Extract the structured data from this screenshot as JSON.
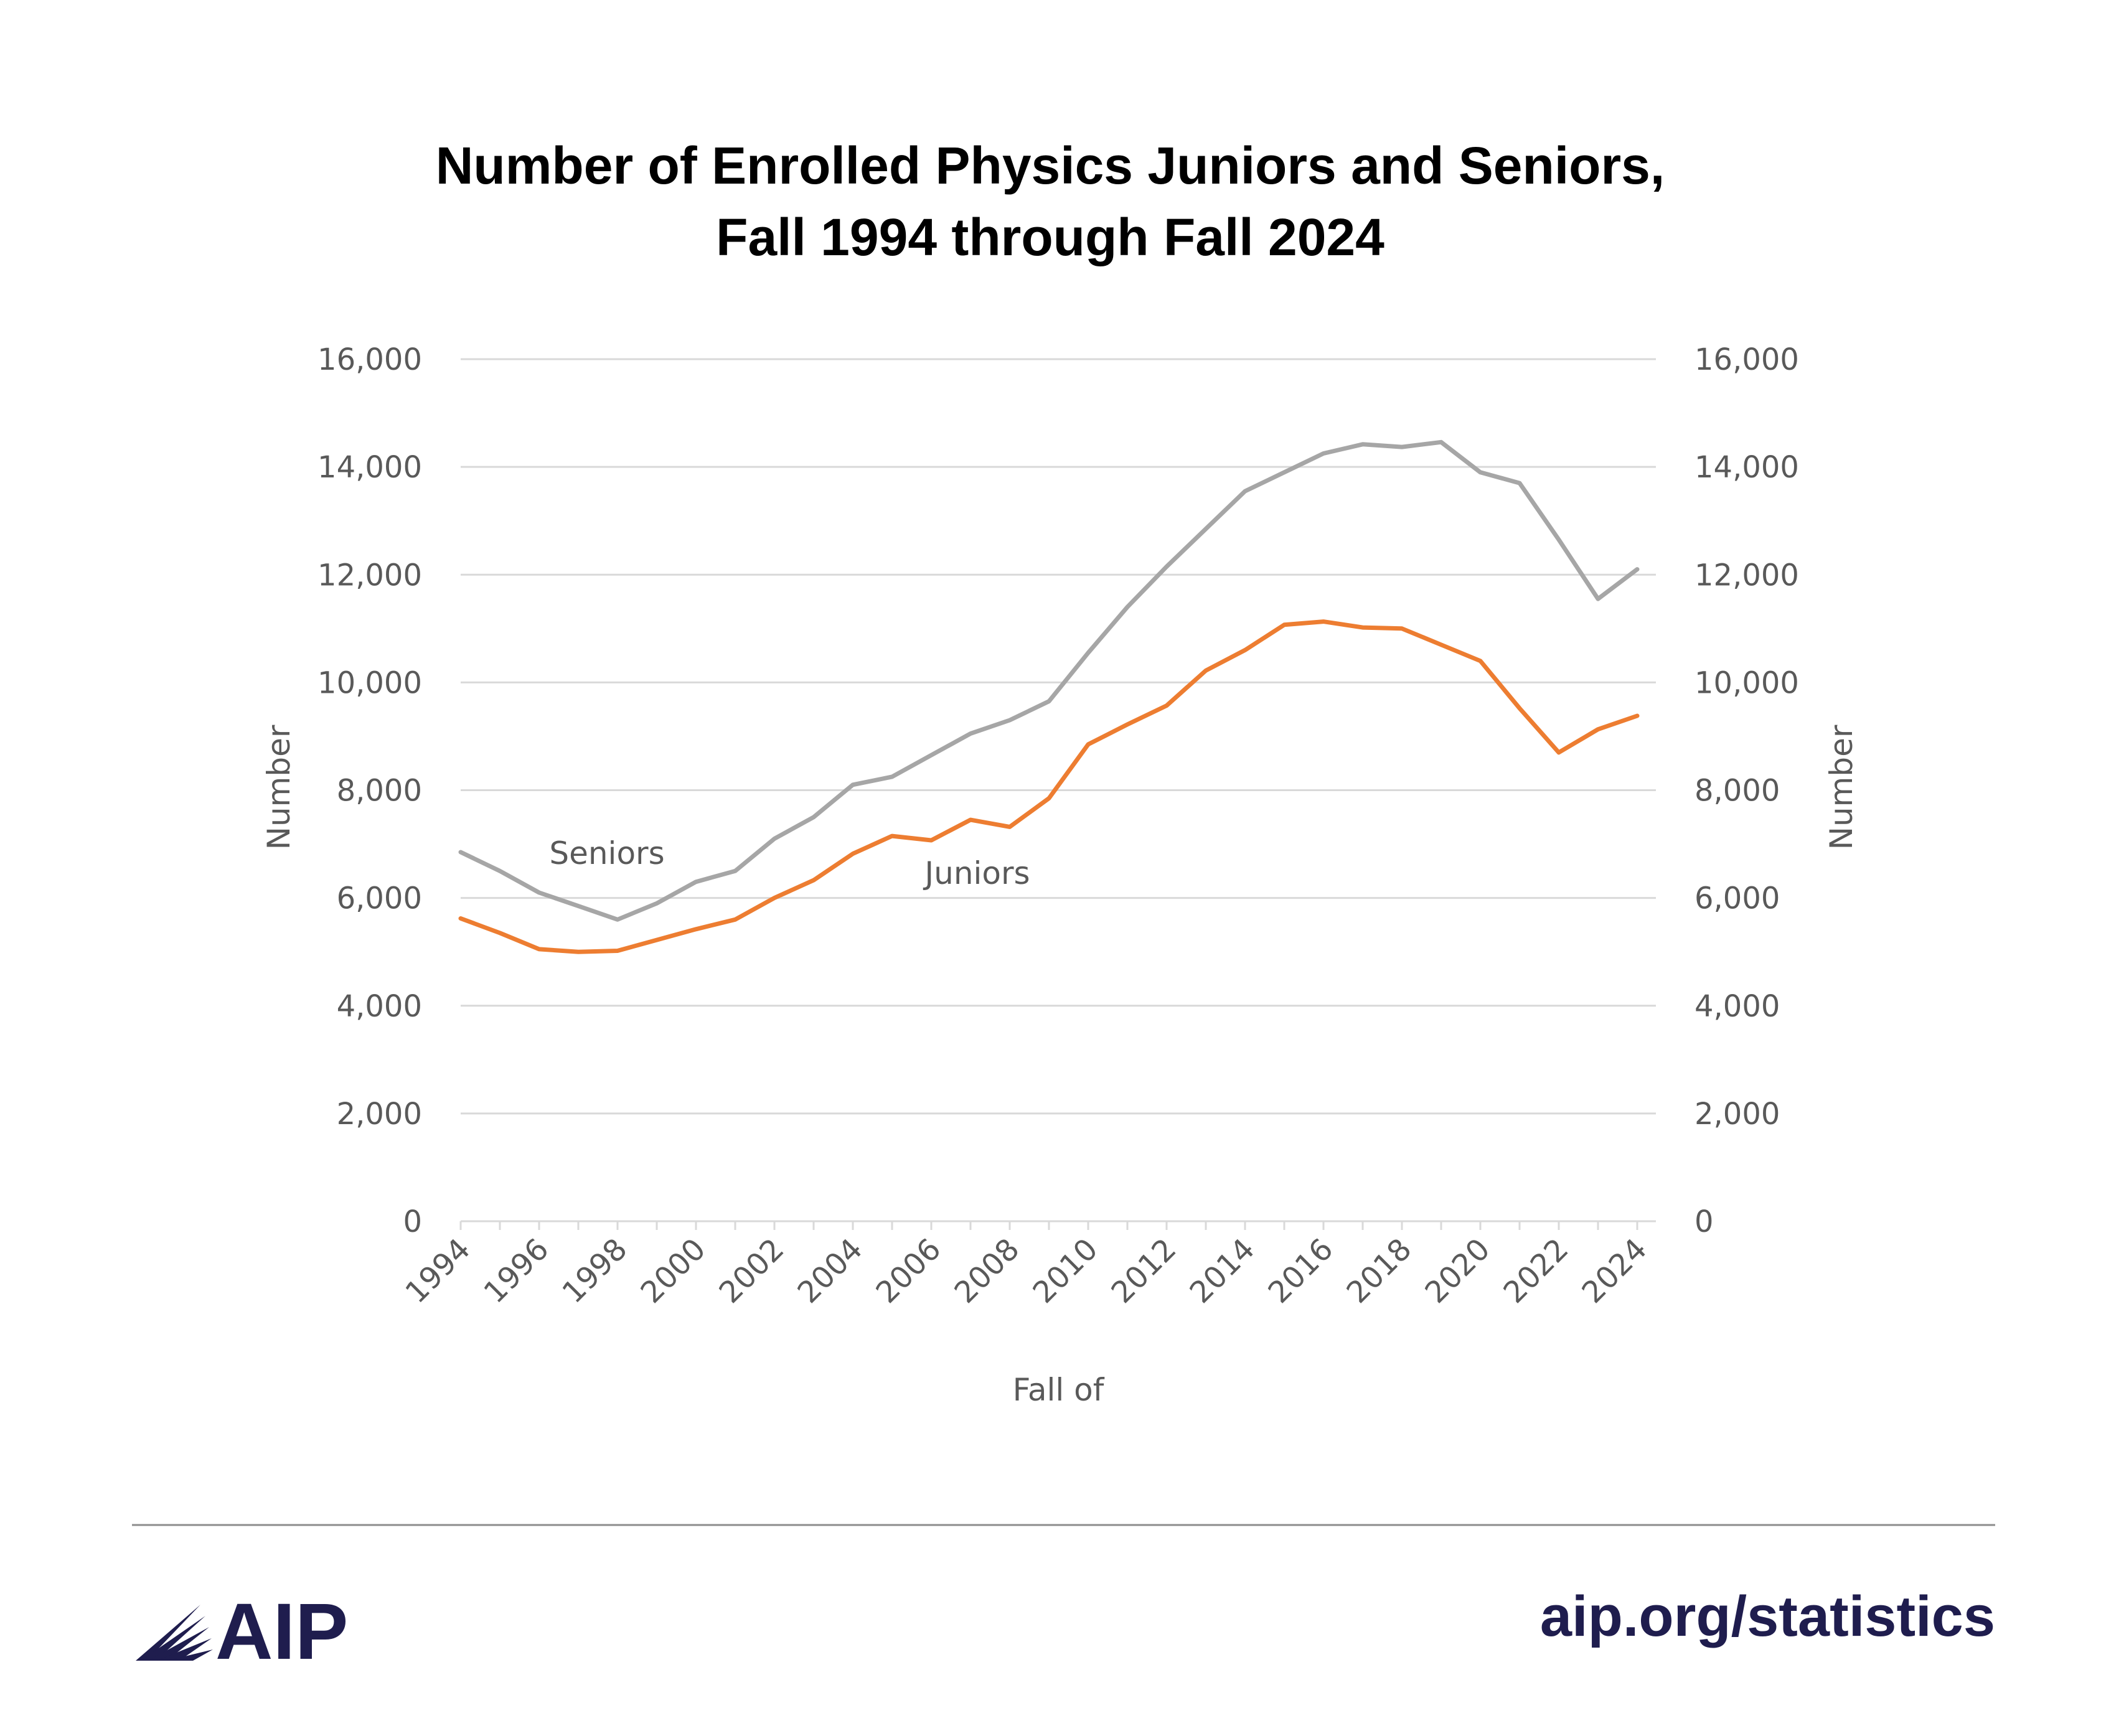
{
  "header": {
    "title_line1": "Number of Enrolled Physics Juniors and Seniors,",
    "title_line2": "Fall 1994 through Fall 2024"
  },
  "footer": {
    "logo_text": "AIP",
    "link_text": "aip.org/statistics"
  },
  "colors": {
    "seniors": "#a6a6a6",
    "juniors": "#ed7d31",
    "grid": "#d9d9d9",
    "brand": "#1f1d4e"
  },
  "chart_data": {
    "type": "line",
    "title": "Number of Enrolled Physics Juniors and Seniors, Fall 1994 through Fall 2024",
    "xlabel": "Fall of",
    "ylabel": "Number",
    "ylabel_right": "Number",
    "ylim": [
      0,
      16000
    ],
    "yticks": [
      0,
      2000,
      4000,
      6000,
      8000,
      10000,
      12000,
      14000,
      16000
    ],
    "ytick_labels": [
      "0",
      "2,000",
      "4,000",
      "6,000",
      "8,000",
      "10,000",
      "12,000",
      "14,000",
      "16,000"
    ],
    "xtick_labels": [
      "1994",
      "1996",
      "1998",
      "2000",
      "2002",
      "2004",
      "2006",
      "2008",
      "2010",
      "2012",
      "2014",
      "2016",
      "2018",
      "2020",
      "2022",
      "2024"
    ],
    "grid": true,
    "x": [
      1994,
      1995,
      1996,
      1997,
      1998,
      1999,
      2000,
      2001,
      2002,
      2003,
      2004,
      2005,
      2006,
      2007,
      2008,
      2009,
      2010,
      2011,
      2012,
      2013,
      2014,
      2015,
      2016,
      2017,
      2018,
      2019,
      2020,
      2021,
      2022,
      2023,
      2024
    ],
    "series": [
      {
        "name": "Seniors",
        "label": "Seniors",
        "values": [
          6850,
          6500,
          6100,
          5850,
          5600,
          5900,
          6300,
          6500,
          7100,
          7500,
          8100,
          8250,
          8650,
          9050,
          9300,
          9650,
          10550,
          11400,
          12150,
          12850,
          13550,
          13900,
          14250,
          14420,
          14370,
          14460,
          13900,
          13700,
          12650,
          11550,
          12100
        ]
      },
      {
        "name": "Juniors",
        "label": "Juniors",
        "values": [
          5620,
          5350,
          5050,
          5000,
          5020,
          5220,
          5420,
          5600,
          6000,
          6330,
          6820,
          7150,
          7070,
          7450,
          7320,
          7850,
          8850,
          9220,
          9570,
          10220,
          10600,
          11070,
          11130,
          11020,
          11000,
          10700,
          10400,
          9520,
          8700,
          9130,
          9380
        ]
      }
    ]
  }
}
